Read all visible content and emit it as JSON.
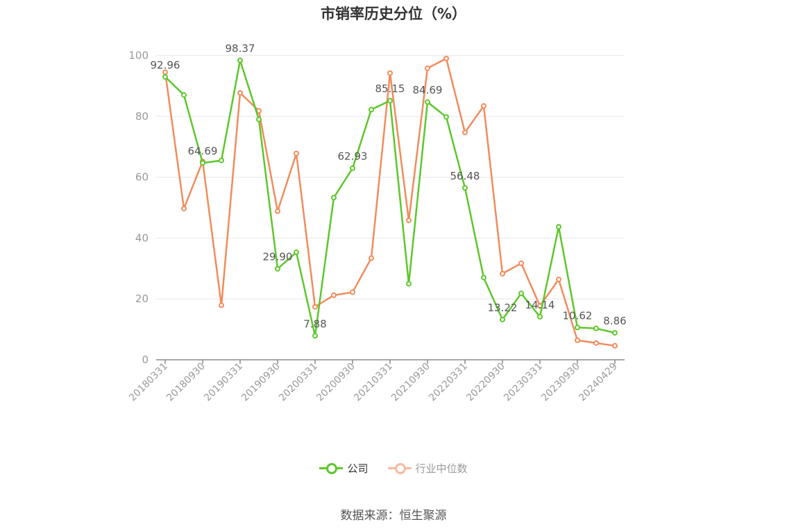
{
  "chart_data": {
    "type": "line",
    "title": "市销率历史分位（%）",
    "source": "数据来源：恒生聚源",
    "ylim": [
      0,
      100
    ],
    "y_ticks": [
      "0",
      "20",
      "40",
      "60",
      "80",
      "100"
    ],
    "x_tick_labels": [
      "20180331",
      "20180930",
      "20190331",
      "20190930",
      "20200331",
      "20200930",
      "20210331",
      "20210930",
      "20220331",
      "20220930",
      "20230331",
      "20230930",
      "20240429"
    ],
    "x": [
      "20180331",
      "20180630",
      "20180930",
      "20181231",
      "20190331",
      "20190630",
      "20190930",
      "20191231",
      "20200331",
      "20200630",
      "20200930",
      "20201231",
      "20210331",
      "20210630",
      "20210930",
      "20211231",
      "20220331",
      "20220630",
      "20220930",
      "20221231",
      "20230331",
      "20230630",
      "20230930",
      "20231231",
      "20240429"
    ],
    "grid": true,
    "legend_position": "bottom",
    "series": [
      {
        "name": "公司",
        "color": "#5cc72a",
        "values": [
          92.96,
          87.0,
          64.69,
          65.5,
          98.37,
          79.0,
          29.9,
          35.3,
          7.88,
          53.3,
          62.93,
          82.2,
          85.15,
          25.0,
          84.69,
          79.8,
          56.48,
          27.0,
          13.22,
          21.8,
          14.14,
          43.7,
          10.62,
          10.3,
          8.86
        ]
      },
      {
        "name": "行业中位数",
        "color": "#f28b5b",
        "values": [
          94.5,
          49.7,
          65.2,
          17.9,
          87.7,
          81.8,
          48.8,
          67.8,
          17.4,
          21.2,
          22.2,
          33.4,
          94.2,
          45.8,
          95.8,
          99.0,
          74.7,
          83.4,
          28.3,
          31.7,
          17.7,
          26.4,
          6.4,
          5.5,
          4.6
        ]
      }
    ],
    "data_labels": [
      {
        "index": 0,
        "text": "92.96"
      },
      {
        "index": 2,
        "text": "64.69"
      },
      {
        "index": 4,
        "text": "98.37"
      },
      {
        "index": 6,
        "text": "29.90"
      },
      {
        "index": 8,
        "text": "7.88"
      },
      {
        "index": 10,
        "text": "62.93"
      },
      {
        "index": 12,
        "text": "85.15"
      },
      {
        "index": 14,
        "text": "84.69"
      },
      {
        "index": 16,
        "text": "56.48"
      },
      {
        "index": 18,
        "text": "13.22"
      },
      {
        "index": 20,
        "text": "14.14"
      },
      {
        "index": 22,
        "text": "10.62"
      },
      {
        "index": 24,
        "text": "8.86"
      }
    ],
    "legend": [
      {
        "label": "公司",
        "color": "#5cc72a",
        "active": true
      },
      {
        "label": "行业中位数",
        "color": "#f9b9a0",
        "active": false
      }
    ]
  }
}
